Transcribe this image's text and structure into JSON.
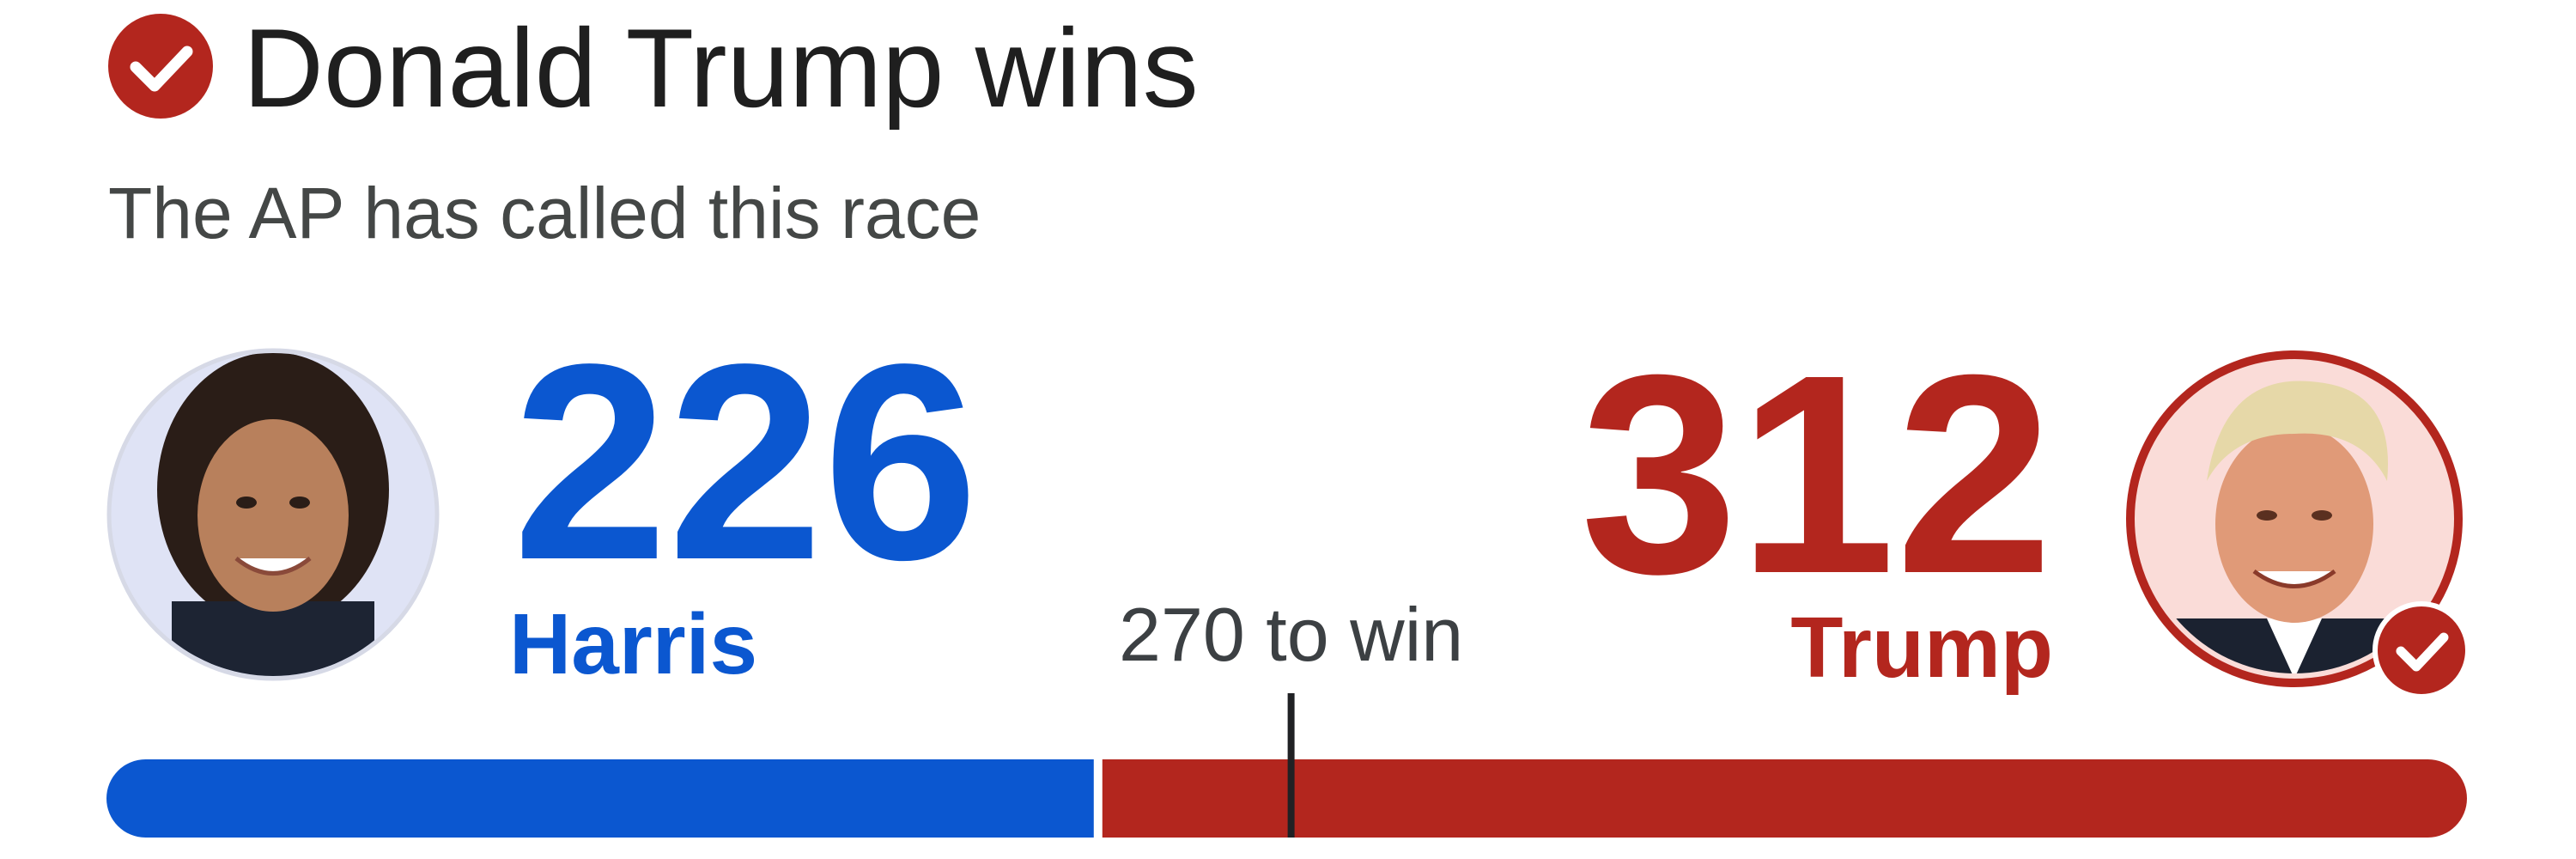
{
  "header": {
    "title": "Donald Trump wins",
    "subtitle": "The AP has called this race"
  },
  "candidates": [
    {
      "name": "Harris",
      "votes": 226,
      "color": "#0b57d0"
    },
    {
      "name": "Trump",
      "votes": 312,
      "color": "#b3261e"
    }
  ],
  "threshold": {
    "value": 270,
    "label": "270 to win"
  }
}
